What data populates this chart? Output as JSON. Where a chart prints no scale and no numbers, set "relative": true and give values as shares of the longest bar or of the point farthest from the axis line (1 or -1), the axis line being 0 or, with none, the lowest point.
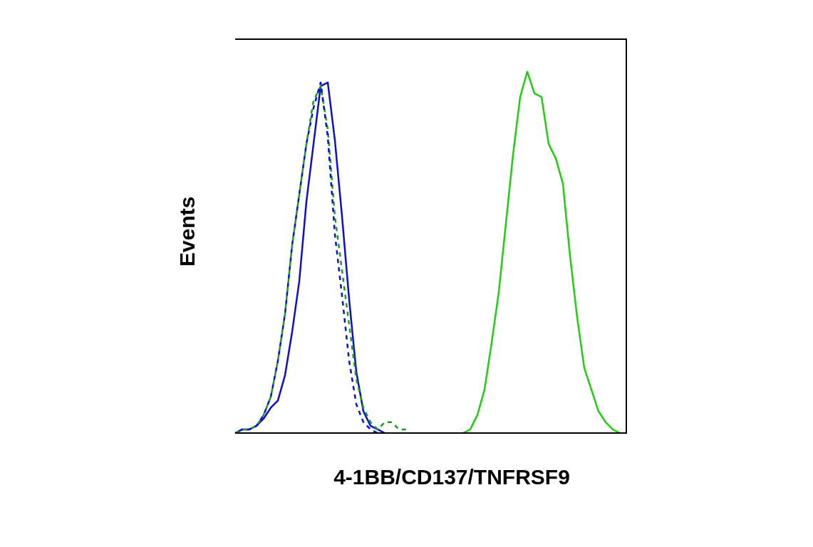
{
  "chart_data": {
    "type": "line",
    "relative": true,
    "xlabel": "4-1BB/CD137/TNFRSF9",
    "ylabel": "Events",
    "grid": false,
    "legend": false,
    "marker": "none",
    "categories": [
      null,
      null,
      null,
      null,
      null,
      null,
      null,
      null,
      null,
      null,
      null,
      null,
      null,
      null,
      null,
      null,
      null,
      null,
      null,
      null,
      null,
      null,
      null,
      null,
      null,
      null,
      null,
      null,
      null,
      null,
      null,
      null,
      null,
      null,
      null,
      null,
      null,
      null,
      null,
      null,
      null,
      null,
      null,
      null,
      null,
      null,
      null,
      null,
      null,
      null,
      null,
      null,
      null,
      null,
      null
    ],
    "series": [
      {
        "color": "#0c10c8",
        "line_style": "solid",
        "values": [
          0,
          0.01,
          0.01,
          0.02,
          0.04,
          0.07,
          0.09,
          0.16,
          0.28,
          0.42,
          0.64,
          0.8,
          0.96,
          0.97,
          0.81,
          0.6,
          0.37,
          0.17,
          0.06,
          0.02,
          0.01,
          0,
          null,
          null,
          null,
          null,
          null,
          null,
          null,
          null,
          null,
          null,
          null,
          null,
          null,
          null,
          null,
          null,
          null,
          null,
          null,
          null,
          null,
          null,
          null,
          null,
          null,
          null,
          null,
          null,
          null,
          null,
          null,
          null,
          null
        ]
      },
      {
        "color": "#1a9e1a",
        "line_style": "dashed",
        "values": [
          0,
          0.01,
          0.01,
          0.02,
          0.05,
          0.1,
          0.2,
          0.33,
          0.52,
          0.66,
          0.8,
          0.92,
          0.96,
          0.84,
          0.6,
          0.45,
          0.3,
          0.15,
          0.07,
          0.03,
          0.01,
          0.03,
          0.03,
          0.01,
          0.01,
          null,
          null,
          null,
          null,
          null,
          null,
          null,
          null,
          null,
          null,
          null,
          null,
          null,
          null,
          null,
          null,
          null,
          null,
          null,
          null,
          null,
          null,
          null,
          null,
          null,
          null,
          null,
          null,
          null,
          null
        ]
      },
      {
        "color": "#0c10c8",
        "line_style": "dashed",
        "values": [
          0,
          0.01,
          0.01,
          0.02,
          0.05,
          0.1,
          0.2,
          0.33,
          0.52,
          0.66,
          0.8,
          0.9,
          0.97,
          0.82,
          0.55,
          0.38,
          0.2,
          0.08,
          0.03,
          0.01,
          0,
          null,
          null,
          null,
          null,
          null,
          null,
          null,
          null,
          null,
          null,
          null,
          null,
          null,
          null,
          null,
          null,
          null,
          null,
          null,
          null,
          null,
          null,
          null,
          null,
          null,
          null,
          null,
          null,
          null,
          null,
          null,
          null,
          null,
          null
        ]
      },
      {
        "color": "#22cc11",
        "line_style": "solid",
        "values": [
          null,
          null,
          null,
          null,
          null,
          null,
          null,
          null,
          null,
          null,
          null,
          null,
          null,
          null,
          null,
          null,
          null,
          null,
          null,
          null,
          null,
          null,
          null,
          null,
          null,
          null,
          null,
          null,
          null,
          null,
          null,
          null,
          0,
          0.01,
          0.05,
          0.12,
          0.25,
          0.39,
          0.58,
          0.77,
          0.93,
          1,
          0.94,
          0.93,
          0.8,
          0.76,
          0.69,
          0.49,
          0.32,
          0.18,
          0.12,
          0.06,
          0.03,
          0.01,
          0
        ]
      }
    ]
  }
}
